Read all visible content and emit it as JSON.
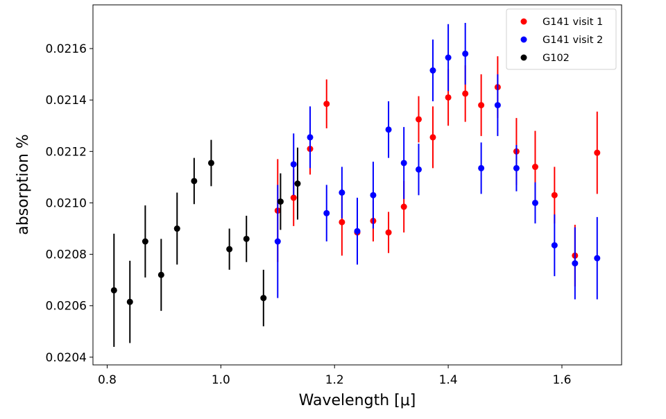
{
  "chart_data": {
    "type": "scatter",
    "title": "",
    "xlabel": "Wavelength [μ]",
    "ylabel": "absorption %",
    "xlim": [
      0.775,
      1.705
    ],
    "ylim": [
      0.02037,
      0.02177
    ],
    "xticks": [
      0.8,
      1.0,
      1.2,
      1.4,
      1.6
    ],
    "xtick_labels": [
      "0.8",
      "1.0",
      "1.2",
      "1.4",
      "1.6"
    ],
    "yticks": [
      0.0204,
      0.0206,
      0.0208,
      0.021,
      0.0212,
      0.0214,
      0.0216
    ],
    "ytick_labels": [
      "0.0204",
      "0.0206",
      "0.0208",
      "0.0210",
      "0.0212",
      "0.0214",
      "0.0216"
    ],
    "grid": false,
    "legend_position": "top-right",
    "series": [
      {
        "name": "G141 visit 1",
        "color": "#ff0000",
        "x": [
          1.1,
          1.128,
          1.157,
          1.186,
          1.213,
          1.24,
          1.268,
          1.295,
          1.322,
          1.348,
          1.373,
          1.4,
          1.43,
          1.458,
          1.487,
          1.52,
          1.553,
          1.587,
          1.623,
          1.662
        ],
        "y": [
          0.02097,
          0.02102,
          0.02121,
          0.021385,
          0.020925,
          0.020885,
          0.02093,
          0.020885,
          0.020985,
          0.021325,
          0.021255,
          0.02141,
          0.021425,
          0.02138,
          0.02145,
          0.0212,
          0.02114,
          0.02103,
          0.020795,
          0.021195
        ],
        "error": [
          0.0002,
          0.00011,
          0.0001,
          9.5e-05,
          0.00013,
          9e-05,
          8e-05,
          8e-05,
          0.0001,
          9e-05,
          0.00012,
          0.00011,
          0.00011,
          0.00012,
          0.00012,
          0.00013,
          0.00014,
          0.00011,
          0.00012,
          0.00016
        ]
      },
      {
        "name": "G141 visit 2",
        "color": "#0000ff",
        "x": [
          1.1,
          1.128,
          1.157,
          1.186,
          1.213,
          1.24,
          1.268,
          1.295,
          1.322,
          1.348,
          1.373,
          1.4,
          1.43,
          1.458,
          1.487,
          1.52,
          1.553,
          1.587,
          1.623,
          1.662
        ],
        "y": [
          0.02085,
          0.02115,
          0.021255,
          0.02096,
          0.02104,
          0.02089,
          0.02103,
          0.021285,
          0.021155,
          0.02113,
          0.021515,
          0.021565,
          0.02158,
          0.021135,
          0.02138,
          0.021135,
          0.021,
          0.020835,
          0.020765,
          0.020785
        ],
        "error": [
          0.00022,
          0.00012,
          0.00012,
          0.00011,
          0.0001,
          0.00013,
          0.00013,
          0.00011,
          0.00014,
          0.0001,
          0.00012,
          0.00013,
          0.00012,
          0.0001,
          0.00012,
          9e-05,
          8e-05,
          0.00012,
          0.00014,
          0.00016
        ]
      },
      {
        "name": "G102",
        "color": "#000000",
        "x": [
          0.812,
          0.84,
          0.867,
          0.895,
          0.923,
          0.953,
          0.983,
          1.015,
          1.045,
          1.075,
          1.105,
          1.135
        ],
        "y": [
          0.02066,
          0.020615,
          0.02085,
          0.02072,
          0.0209,
          0.021085,
          0.021155,
          0.02082,
          0.02086,
          0.02063,
          0.021005,
          0.021075
        ],
        "error": [
          0.00022,
          0.00016,
          0.00014,
          0.00014,
          0.00014,
          9e-05,
          9e-05,
          8e-05,
          9e-05,
          0.00011,
          0.00011,
          0.00014
        ]
      }
    ]
  }
}
